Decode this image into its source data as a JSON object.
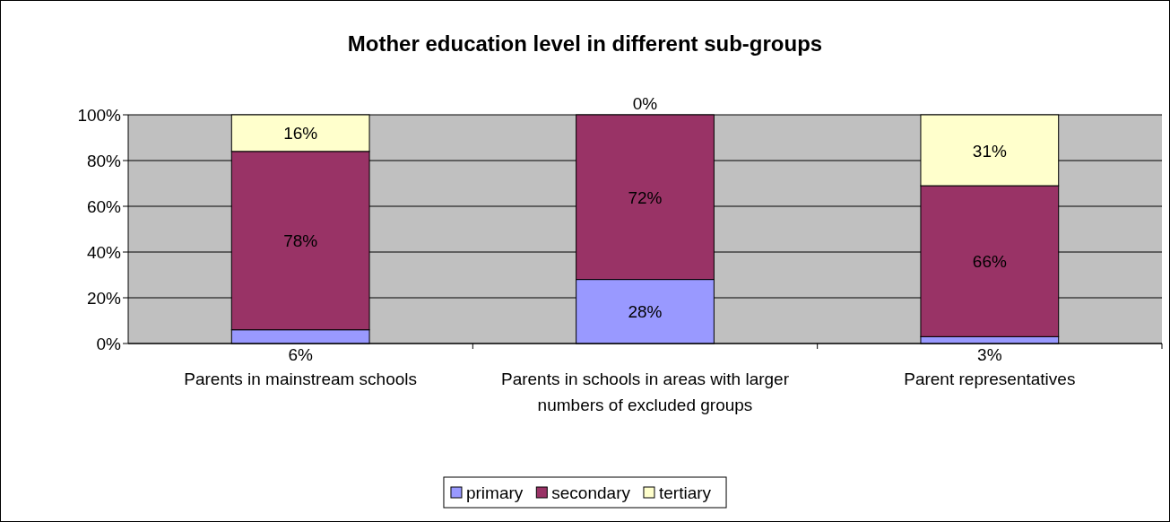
{
  "chart_data": {
    "type": "bar",
    "title": "Mother education level in different sub-groups",
    "categories": [
      "Parents in mainstream schools",
      "Parents in schools in areas with larger numbers of excluded groups",
      "Parent representatives"
    ],
    "stacked": true,
    "series": [
      {
        "name": "primary",
        "color": "#9999ff",
        "values": [
          6,
          28,
          3
        ],
        "value_labels": [
          "6%",
          "28%",
          "3%"
        ]
      },
      {
        "name": "secondary",
        "color": "#993366",
        "values": [
          78,
          72,
          66
        ],
        "value_labels": [
          "78%",
          "72%",
          "66%"
        ]
      },
      {
        "name": "tertiary",
        "color": "#ffffcc",
        "values": [
          16,
          0,
          31
        ],
        "value_labels": [
          "16%",
          "0%",
          "31%"
        ]
      }
    ],
    "ylim": [
      0,
      100
    ],
    "yticks": [
      {
        "value": 0,
        "label": "0%"
      },
      {
        "value": 20,
        "label": "20%"
      },
      {
        "value": 40,
        "label": "40%"
      },
      {
        "value": 60,
        "label": "60%"
      },
      {
        "value": 80,
        "label": "80%"
      },
      {
        "value": 100,
        "label": "100%"
      }
    ],
    "grid": "y",
    "legend": "bottom"
  }
}
